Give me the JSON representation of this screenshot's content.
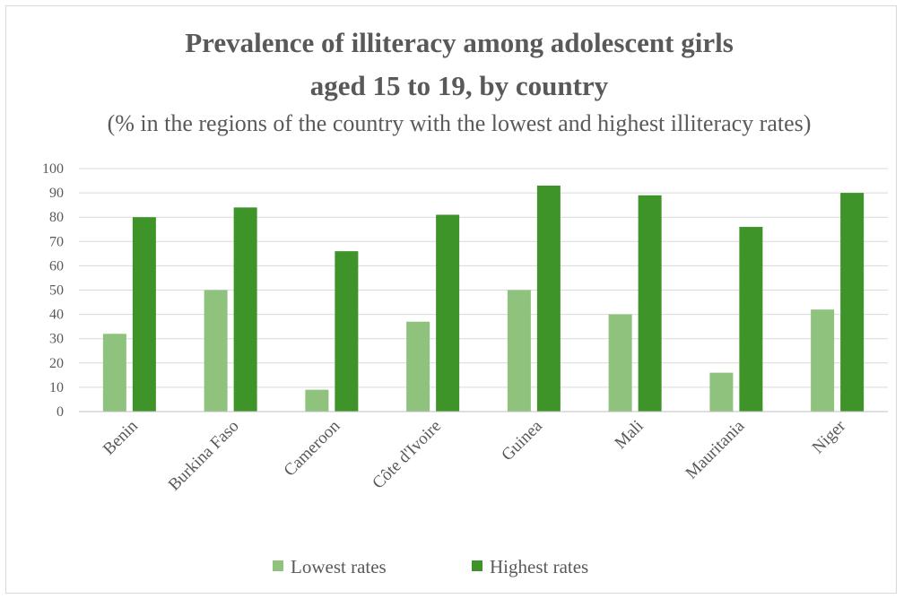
{
  "chart_data": {
    "type": "bar",
    "title_line1": "Prevalence of illiteracy among adolescent girls",
    "title_line2": "aged 15 to 19, by country",
    "subtitle": "(% in the regions of the country with the lowest and highest illiteracy rates)",
    "categories": [
      "Benin",
      "Burkina Faso",
      "Cameroon",
      "Côte d'Ivoire",
      "Guinea",
      "Mali",
      "Mauritania",
      "Niger"
    ],
    "series": [
      {
        "name": "Lowest rates",
        "color": "#8fc37d",
        "values": [
          32,
          50,
          9,
          37,
          50,
          40,
          16,
          42
        ]
      },
      {
        "name": "Highest rates",
        "color": "#3f9429",
        "values": [
          80,
          84,
          66,
          81,
          93,
          89,
          76,
          90
        ]
      }
    ],
    "ylim": [
      0,
      100
    ],
    "yticks": [
      "0",
      "10",
      "20",
      "30",
      "40",
      "50",
      "60",
      "70",
      "80",
      "90",
      "100"
    ],
    "grid": true,
    "legend_position": "bottom"
  }
}
